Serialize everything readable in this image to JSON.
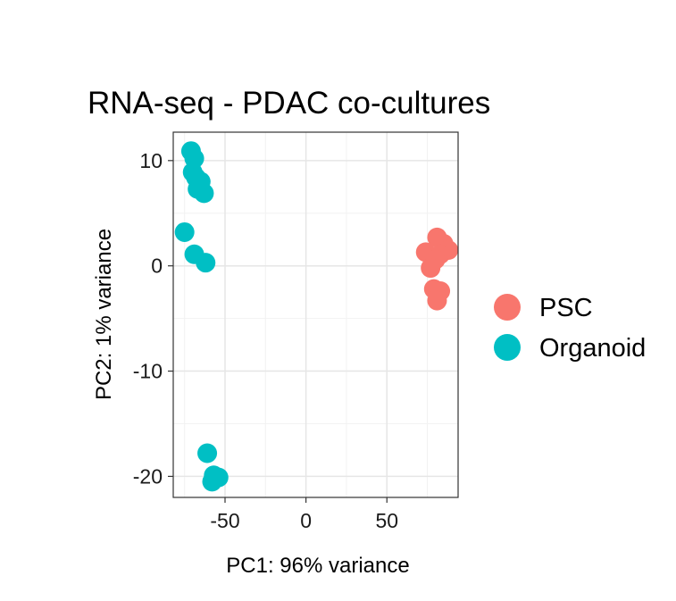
{
  "chart_data": {
    "type": "scatter",
    "title": "RNA-seq - PDAC co-cultures",
    "xlabel": "PC1: 96% variance",
    "ylabel": "PC2: 1% variance",
    "xlim": [
      -82,
      94
    ],
    "ylim": [
      -22,
      12.7
    ],
    "x_ticks": [
      -50,
      0,
      50
    ],
    "y_ticks": [
      10,
      0,
      -10,
      -20
    ],
    "x_tick_labels": [
      "-50",
      "0",
      "50"
    ],
    "y_tick_labels": [
      "10",
      "0",
      "-10",
      "-20"
    ],
    "grid": true,
    "legend": "right",
    "series": [
      {
        "name": "PSC",
        "color": "#F8766D",
        "points": [
          [
            81,
            2.7
          ],
          [
            85,
            2.1
          ],
          [
            88,
            1.5
          ],
          [
            74,
            1.3
          ],
          [
            83,
            1.1
          ],
          [
            80,
            0.6
          ],
          [
            77,
            -0.2
          ],
          [
            79,
            -2.2
          ],
          [
            83,
            -2.4
          ],
          [
            81,
            -3.3
          ]
        ]
      },
      {
        "name": "Organoid",
        "color": "#00BFC4",
        "points": [
          [
            -71,
            10.9
          ],
          [
            -69,
            10.2
          ],
          [
            -70,
            8.9
          ],
          [
            -68,
            8.4
          ],
          [
            -65,
            8.0
          ],
          [
            -67,
            7.3
          ],
          [
            -63,
            6.9
          ],
          [
            -75,
            3.2
          ],
          [
            -69,
            1.1
          ],
          [
            -62,
            0.3
          ],
          [
            -61,
            -17.8
          ],
          [
            -57,
            -19.9
          ],
          [
            -54,
            -20.1
          ],
          [
            -58,
            -20.5
          ]
        ]
      }
    ]
  }
}
